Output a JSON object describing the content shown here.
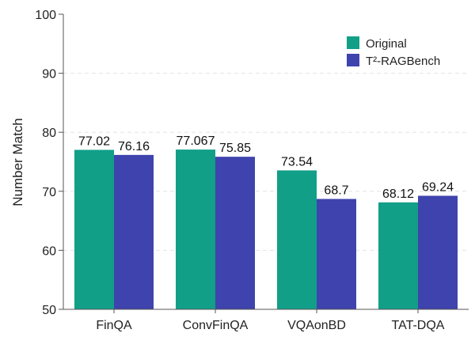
{
  "chart_data": {
    "type": "bar",
    "title": "",
    "xlabel": "",
    "ylabel": "Number Match",
    "ylim": [
      50,
      100
    ],
    "yticks": [
      50,
      60,
      70,
      80,
      90,
      100
    ],
    "grid": true,
    "legend_position": "top-right",
    "categories": [
      "FinQA",
      "ConvFinQA",
      "VQAonBD",
      "TAT-DQA"
    ],
    "series": [
      {
        "name": "Original",
        "color": "#119f88",
        "values": [
          77.02,
          77.067,
          73.54,
          68.12
        ],
        "labels": [
          "77.02",
          "77.067",
          "73.54",
          "68.12"
        ]
      },
      {
        "name": "T²-RAGBench",
        "color": "#3f43ad",
        "values": [
          76.16,
          75.85,
          68.7,
          69.24
        ],
        "labels": [
          "76.16",
          "75.85",
          "68.7",
          "69.24"
        ]
      }
    ]
  }
}
